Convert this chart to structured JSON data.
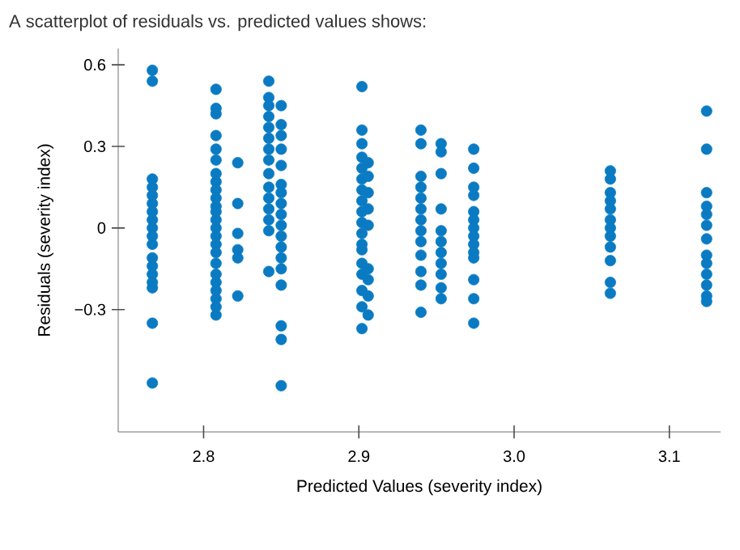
{
  "chart_data": {
    "type": "scatter",
    "title": "A scatterplot of residuals vs. predicted values shows:",
    "xlabel": "Predicted Values (severity index)",
    "ylabel": "Residuals (severity index)",
    "marker": "circle",
    "grid": false,
    "xlim": [
      2.745,
      3.133
    ],
    "ylim": [
      -0.75,
      0.66
    ],
    "xticks": [
      2.8,
      2.9,
      {
        "value": 3.0,
        "label": "3.0"
      },
      3.1
    ],
    "yticks": [
      {
        "value": -0.3,
        "label": "−0.3"
      },
      0,
      0.3,
      0.6
    ],
    "series": [
      {
        "color": "#0a7bc2",
        "x": [
          2.767,
          2.767,
          2.767,
          2.767,
          2.767,
          2.767,
          2.767,
          2.767,
          2.767,
          2.767,
          2.767,
          2.767,
          2.767,
          2.767,
          2.767,
          2.767,
          2.767,
          2.767,
          2.808,
          2.808,
          2.808,
          2.808,
          2.808,
          2.808,
          2.808,
          2.808,
          2.808,
          2.808,
          2.808,
          2.808,
          2.808,
          2.808,
          2.808,
          2.808,
          2.808,
          2.808,
          2.808,
          2.808,
          2.808,
          2.808,
          2.808,
          2.808,
          2.822,
          2.822,
          2.822,
          2.822,
          2.822,
          2.822,
          2.842,
          2.842,
          2.842,
          2.842,
          2.842,
          2.842,
          2.842,
          2.842,
          2.842,
          2.842,
          2.842,
          2.842,
          2.842,
          2.842,
          2.842,
          2.85,
          2.85,
          2.85,
          2.85,
          2.85,
          2.85,
          2.85,
          2.85,
          2.85,
          2.85,
          2.85,
          2.85,
          2.85,
          2.85,
          2.85,
          2.85,
          2.85,
          2.85,
          2.902,
          2.902,
          2.902,
          2.902,
          2.902,
          2.902,
          2.902,
          2.902,
          2.902,
          2.902,
          2.902,
          2.902,
          2.902,
          2.902,
          2.902,
          2.902,
          2.902,
          2.902,
          2.906,
          2.906,
          2.906,
          2.906,
          2.906,
          2.906,
          2.906,
          2.906,
          2.906,
          2.94,
          2.94,
          2.94,
          2.94,
          2.94,
          2.94,
          2.94,
          2.94,
          2.94,
          2.94,
          2.94,
          2.94,
          2.94,
          2.953,
          2.953,
          2.953,
          2.953,
          2.953,
          2.953,
          2.953,
          2.953,
          2.953,
          2.953,
          2.953,
          2.974,
          2.974,
          2.974,
          2.974,
          2.974,
          2.974,
          2.974,
          2.974,
          2.974,
          2.974,
          2.974,
          2.974,
          2.974,
          2.974,
          3.062,
          3.062,
          3.062,
          3.062,
          3.062,
          3.062,
          3.062,
          3.062,
          3.062,
          3.062,
          3.062,
          3.062,
          3.124,
          3.124,
          3.124,
          3.124,
          3.124,
          3.124,
          3.124,
          3.124,
          3.124,
          3.124,
          3.124,
          3.124,
          3.124
        ],
        "values": [
          0.58,
          0.54,
          0.18,
          0.15,
          0.12,
          0.09,
          0.06,
          0.03,
          0,
          -0.03,
          -0.06,
          -0.11,
          -0.14,
          -0.17,
          -0.2,
          -0.22,
          -0.35,
          -0.57,
          0.51,
          0.44,
          0.42,
          0.34,
          0.29,
          0.25,
          0.2,
          0.17,
          0.14,
          0.11,
          0.08,
          0.06,
          0.03,
          0,
          -0.03,
          -0.06,
          -0.09,
          -0.13,
          -0.17,
          -0.2,
          -0.23,
          -0.26,
          -0.29,
          -0.32,
          0.24,
          0.09,
          -0.02,
          -0.08,
          -0.11,
          -0.25,
          0.54,
          0.48,
          0.45,
          0.41,
          0.37,
          0.33,
          0.29,
          0.25,
          0.2,
          0.15,
          0.11,
          0.07,
          0.03,
          -0.01,
          -0.16,
          0.45,
          0.38,
          0.34,
          0.29,
          0.23,
          0.16,
          0.13,
          0.09,
          0.05,
          0.01,
          -0.03,
          -0.07,
          -0.11,
          -0.15,
          -0.21,
          -0.36,
          -0.41,
          -0.58,
          0.52,
          0.36,
          0.31,
          0.26,
          0.22,
          0.18,
          0.14,
          0.1,
          0.06,
          0.02,
          -0.02,
          -0.06,
          -0.08,
          -0.13,
          -0.17,
          -0.23,
          -0.29,
          -0.37,
          0.24,
          0.19,
          0.13,
          0.07,
          0.01,
          -0.15,
          -0.19,
          -0.25,
          -0.32,
          0.36,
          0.31,
          0.19,
          0.15,
          0.11,
          0.07,
          0.03,
          -0.01,
          -0.05,
          -0.1,
          -0.16,
          -0.21,
          -0.31,
          0.31,
          0.28,
          0.2,
          0.07,
          -0.01,
          -0.05,
          -0.09,
          -0.13,
          -0.17,
          -0.22,
          -0.26,
          0.29,
          0.22,
          0.15,
          0.12,
          0.06,
          0.03,
          0,
          -0.03,
          -0.06,
          -0.09,
          -0.11,
          -0.19,
          -0.26,
          -0.35,
          0.21,
          0.18,
          0.13,
          0.1,
          0.07,
          0.03,
          0,
          -0.03,
          -0.07,
          -0.12,
          -0.2,
          -0.24,
          0.43,
          0.29,
          0.13,
          0.08,
          0.05,
          0.01,
          -0.04,
          -0.1,
          -0.13,
          -0.17,
          -0.21,
          -0.25,
          -0.27
        ]
      }
    ]
  }
}
